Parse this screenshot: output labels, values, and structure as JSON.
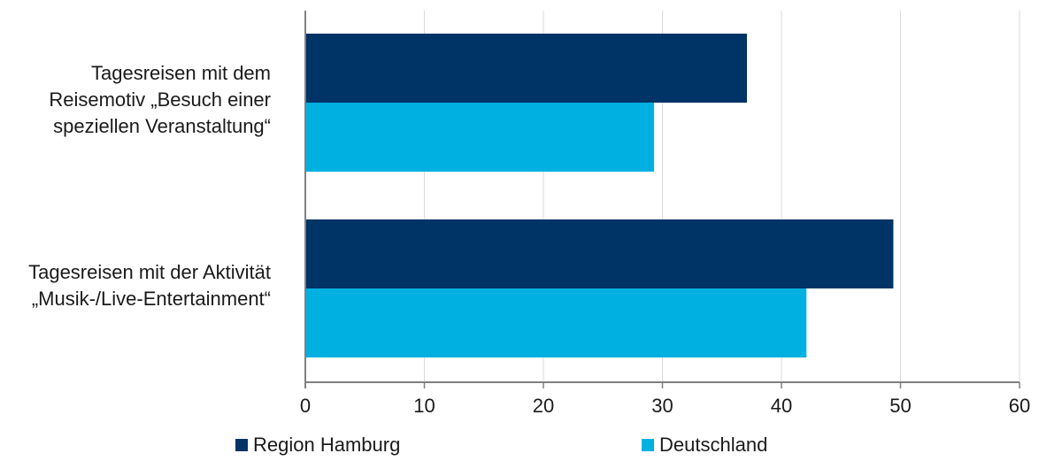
{
  "chart_data": {
    "type": "bar",
    "orientation": "horizontal",
    "categories": [
      "Tagesreisen mit dem\nReisemotiv „Besuch einer\nspeziellen Veranstaltung“",
      "Tagesreisen mit der Aktivität\n„Musik-/Live-Entertainment“"
    ],
    "series": [
      {
        "name": "Region Hamburg",
        "color": "#003366",
        "values": [
          37.1,
          49.4
        ]
      },
      {
        "name": "Deutschland",
        "color": "#00b0e0",
        "values": [
          29.3,
          42.1
        ]
      }
    ],
    "xlim": [
      0,
      60
    ],
    "xticks": [
      "0",
      "10",
      "20",
      "30",
      "40",
      "50",
      "60"
    ],
    "grid": true,
    "legend_position": "bottom",
    "title": "",
    "xlabel": "",
    "ylabel": ""
  }
}
